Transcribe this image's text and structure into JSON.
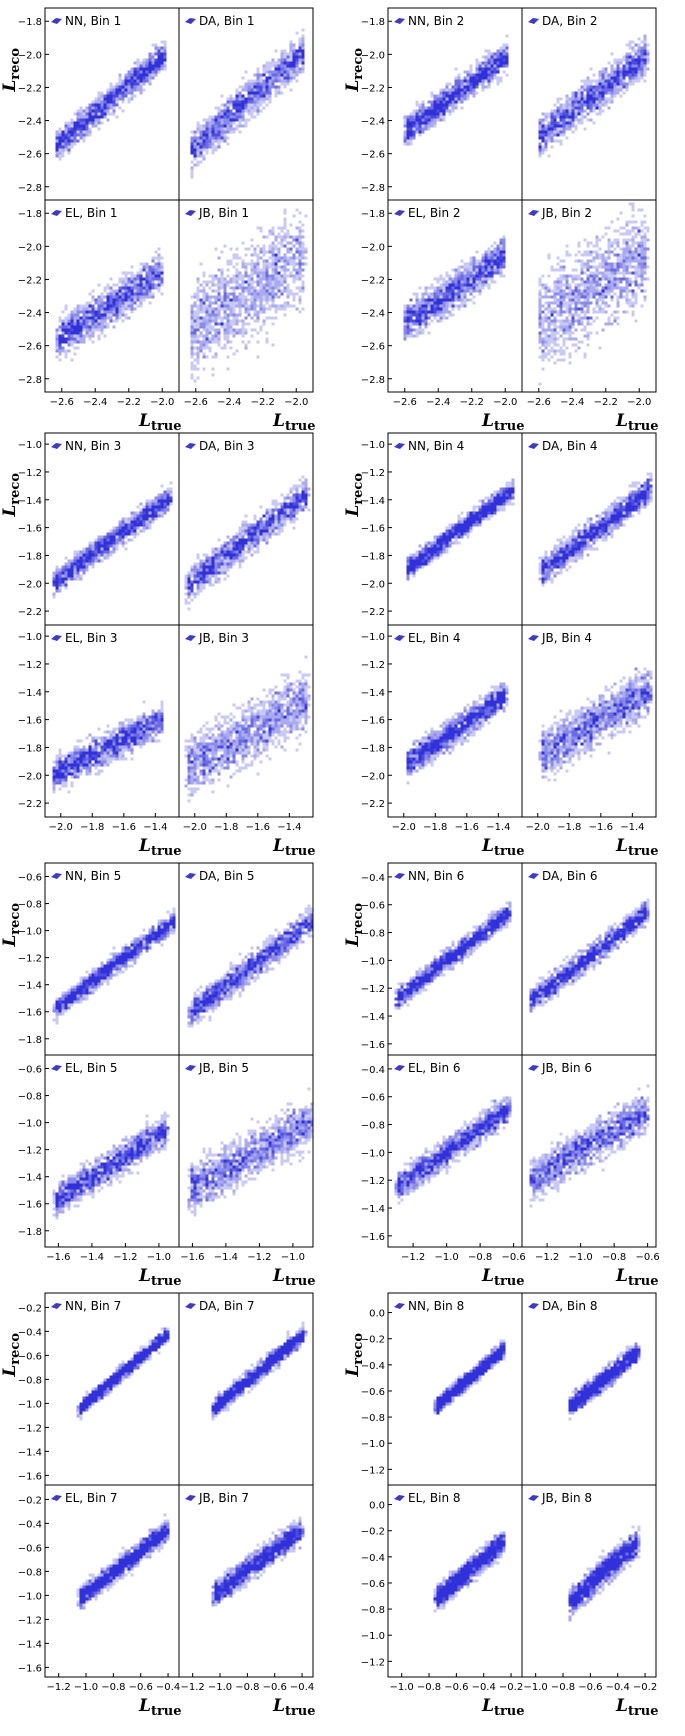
{
  "figure": {
    "ylabel_main": "L",
    "ylabel_sub": "reco",
    "xlabel_main": "L",
    "xlabel_sub": "true"
  },
  "colors": {
    "point": "#1f1fd8",
    "legend_marker": "#3a3ad0",
    "frame": "#000000"
  },
  "chart_data": [
    {
      "type": "heatmap",
      "bin": 1,
      "xticks": [
        "−2.6",
        "−2.4",
        "−2.2",
        "−2.0"
      ],
      "yticks": [
        "−1.8",
        "−2.0",
        "−2.2",
        "−2.4",
        "−2.6",
        "−2.8"
      ],
      "xlim": [
        -2.7,
        -1.9
      ],
      "ylim": [
        -2.88,
        -1.72
      ],
      "xlabel": "L_true",
      "ylabel": "L_reco",
      "panels": [
        {
          "label": "NN, Bin 1",
          "trend": {
            "x": [
              -2.63,
              -1.98
            ],
            "y": [
              -2.55,
              -2.0
            ]
          },
          "x_range": [
            -2.63,
            -1.98
          ],
          "spread": 0.06
        },
        {
          "label": "DA, Bin 1",
          "trend": {
            "x": [
              -2.63,
              -1.95
            ],
            "y": [
              -2.58,
              -1.98
            ]
          },
          "x_range": [
            -2.63,
            -1.95
          ],
          "spread": 0.08
        },
        {
          "label": "EL, Bin 1",
          "trend": {
            "x": [
              -2.63,
              -2.0
            ],
            "y": [
              -2.57,
              -2.15
            ]
          },
          "x_range": [
            -2.63,
            -2.0
          ],
          "spread": 0.08
        },
        {
          "label": "JB, Bin 1",
          "trend": {
            "x": [
              -2.63,
              -1.95
            ],
            "y": [
              -2.5,
              -2.05
            ]
          },
          "x_range": [
            -2.63,
            -1.95
          ],
          "spread": 0.2
        }
      ]
    },
    {
      "type": "heatmap",
      "bin": 2,
      "xticks": [
        "−2.6",
        "−2.4",
        "−2.2",
        "−2.0"
      ],
      "yticks": [
        "−1.8",
        "−2.0",
        "−2.2",
        "−2.4",
        "−2.6",
        "−2.8"
      ],
      "xlim": [
        -2.7,
        -1.9
      ],
      "ylim": [
        -2.88,
        -1.72
      ],
      "xlabel": "L_true",
      "ylabel": "L_reco",
      "panels": [
        {
          "label": "NN, Bin 2",
          "trend": {
            "x": [
              -2.6,
              -1.98
            ],
            "y": [
              -2.47,
              -2.0
            ]
          },
          "x_range": [
            -2.6,
            -1.98
          ],
          "spread": 0.06
        },
        {
          "label": "DA, Bin 2",
          "trend": {
            "x": [
              -2.6,
              -1.95
            ],
            "y": [
              -2.5,
              -2.0
            ]
          },
          "x_range": [
            -2.6,
            -1.95
          ],
          "spread": 0.08
        },
        {
          "label": "EL, Bin 2",
          "trend": {
            "x": [
              -2.6,
              -2.0
            ],
            "y": [
              -2.47,
              -2.05
            ]
          },
          "x_range": [
            -2.6,
            -2.0
          ],
          "spread": 0.08
        },
        {
          "label": "JB, Bin 2",
          "trend": {
            "x": [
              -2.6,
              -1.95
            ],
            "y": [
              -2.45,
              -2.05
            ]
          },
          "x_range": [
            -2.6,
            -1.95
          ],
          "spread": 0.2
        }
      ]
    },
    {
      "type": "heatmap",
      "bin": 3,
      "xticks": [
        "−2.0",
        "−1.8",
        "−1.6",
        "−1.4"
      ],
      "yticks": [
        "−1.0",
        "−1.2",
        "−1.4",
        "−1.6",
        "−1.8",
        "−2.0",
        "−2.2"
      ],
      "xlim": [
        -2.1,
        -1.25
      ],
      "ylim": [
        -2.3,
        -0.92
      ],
      "xlabel": "L_true",
      "ylabel": "L_reco",
      "panels": [
        {
          "label": "NN, Bin 3",
          "trend": {
            "x": [
              -2.05,
              -1.3
            ],
            "y": [
              -2.0,
              -1.38
            ]
          },
          "x_range": [
            -2.05,
            -1.3
          ],
          "spread": 0.06
        },
        {
          "label": "DA, Bin 3",
          "trend": {
            "x": [
              -2.05,
              -1.28
            ],
            "y": [
              -2.02,
              -1.35
            ]
          },
          "x_range": [
            -2.05,
            -1.28
          ],
          "spread": 0.08
        },
        {
          "label": "EL, Bin 3",
          "trend": {
            "x": [
              -2.05,
              -1.35
            ],
            "y": [
              -2.0,
              -1.6
            ]
          },
          "x_range": [
            -2.05,
            -1.35
          ],
          "spread": 0.08
        },
        {
          "label": "JB, Bin 3",
          "trend": {
            "x": [
              -2.05,
              -1.28
            ],
            "y": [
              -1.95,
              -1.45
            ]
          },
          "x_range": [
            -2.05,
            -1.28
          ],
          "spread": 0.15
        }
      ]
    },
    {
      "type": "heatmap",
      "bin": 4,
      "xticks": [
        "−2.0",
        "−1.8",
        "−1.6",
        "−1.4"
      ],
      "yticks": [
        "−1.0",
        "−1.2",
        "−1.4",
        "−1.6",
        "−1.8",
        "−2.0",
        "−2.2"
      ],
      "xlim": [
        -2.1,
        -1.25
      ],
      "ylim": [
        -2.3,
        -0.92
      ],
      "xlabel": "L_true",
      "ylabel": "L_reco",
      "panels": [
        {
          "label": "NN, Bin 4",
          "trend": {
            "x": [
              -1.98,
              -1.3
            ],
            "y": [
              -1.9,
              -1.32
            ]
          },
          "x_range": [
            -1.98,
            -1.3
          ],
          "spread": 0.05
        },
        {
          "label": "DA, Bin 4",
          "trend": {
            "x": [
              -1.98,
              -1.28
            ],
            "y": [
              -1.92,
              -1.32
            ]
          },
          "x_range": [
            -1.98,
            -1.28
          ],
          "spread": 0.07
        },
        {
          "label": "EL, Bin 4",
          "trend": {
            "x": [
              -1.98,
              -1.35
            ],
            "y": [
              -1.92,
              -1.42
            ]
          },
          "x_range": [
            -1.98,
            -1.35
          ],
          "spread": 0.07
        },
        {
          "label": "JB, Bin 4",
          "trend": {
            "x": [
              -1.98,
              -1.28
            ],
            "y": [
              -1.85,
              -1.38
            ]
          },
          "x_range": [
            -1.98,
            -1.28
          ],
          "spread": 0.12
        }
      ]
    },
    {
      "type": "heatmap",
      "bin": 5,
      "xticks": [
        "−1.6",
        "−1.4",
        "−1.2",
        "−1.0"
      ],
      "yticks": [
        "−0.6",
        "−0.8",
        "−1.0",
        "−1.2",
        "−1.4",
        "−1.6",
        "−1.8"
      ],
      "xlim": [
        -1.68,
        -0.88
      ],
      "ylim": [
        -1.92,
        -0.5
      ],
      "xlabel": "L_true",
      "ylabel": "L_reco",
      "panels": [
        {
          "label": "NN, Bin 5",
          "trend": {
            "x": [
              -1.62,
              -0.9
            ],
            "y": [
              -1.58,
              -0.92
            ]
          },
          "x_range": [
            -1.62,
            -0.9
          ],
          "spread": 0.05
        },
        {
          "label": "DA, Bin 5",
          "trend": {
            "x": [
              -1.62,
              -0.88
            ],
            "y": [
              -1.62,
              -0.92
            ]
          },
          "x_range": [
            -1.62,
            -0.88
          ],
          "spread": 0.07
        },
        {
          "label": "EL, Bin 5",
          "trend": {
            "x": [
              -1.62,
              -0.95
            ],
            "y": [
              -1.58,
              -1.05
            ]
          },
          "x_range": [
            -1.62,
            -0.95
          ],
          "spread": 0.08
        },
        {
          "label": "JB, Bin 5",
          "trend": {
            "x": [
              -1.62,
              -0.88
            ],
            "y": [
              -1.5,
              -0.98
            ]
          },
          "x_range": [
            -1.62,
            -0.88
          ],
          "spread": 0.12
        }
      ]
    },
    {
      "type": "heatmap",
      "bin": 6,
      "xticks": [
        "−1.2",
        "−1.0",
        "−0.8",
        "−0.6"
      ],
      "yticks": [
        "−0.4",
        "−0.6",
        "−0.8",
        "−1.0",
        "−1.2",
        "−1.4",
        "−1.6"
      ],
      "xlim": [
        -1.35,
        -0.55
      ],
      "ylim": [
        -1.68,
        -0.3
      ],
      "xlabel": "L_true",
      "ylabel": "L_reco",
      "panels": [
        {
          "label": "NN, Bin 6",
          "trend": {
            "x": [
              -1.3,
              -0.62
            ],
            "y": [
              -1.28,
              -0.65
            ]
          },
          "x_range": [
            -1.3,
            -0.62
          ],
          "spread": 0.05
        },
        {
          "label": "DA, Bin 6",
          "trend": {
            "x": [
              -1.3,
              -0.6
            ],
            "y": [
              -1.3,
              -0.65
            ]
          },
          "x_range": [
            -1.3,
            -0.6
          ],
          "spread": 0.06
        },
        {
          "label": "EL, Bin 6",
          "trend": {
            "x": [
              -1.3,
              -0.62
            ],
            "y": [
              -1.25,
              -0.68
            ]
          },
          "x_range": [
            -1.3,
            -0.62
          ],
          "spread": 0.07
        },
        {
          "label": "JB, Bin 6",
          "trend": {
            "x": [
              -1.3,
              -0.6
            ],
            "y": [
              -1.2,
              -0.7
            ]
          },
          "x_range": [
            -1.3,
            -0.6
          ],
          "spread": 0.1
        }
      ]
    },
    {
      "type": "heatmap",
      "bin": 7,
      "xticks": [
        "−1.2",
        "−1.0",
        "−0.8",
        "−0.6",
        "−0.4"
      ],
      "yticks": [
        "−0.2",
        "−0.4",
        "−0.6",
        "−0.8",
        "−1.0",
        "−1.2",
        "−1.4",
        "−1.6"
      ],
      "xlim": [
        -1.3,
        -0.32
      ],
      "ylim": [
        -1.68,
        -0.08
      ],
      "xlabel": "L_true",
      "ylabel": "L_reco",
      "panels": [
        {
          "label": "NN, Bin 7",
          "trend": {
            "x": [
              -1.05,
              -0.4
            ],
            "y": [
              -1.05,
              -0.42
            ]
          },
          "x_range": [
            -1.05,
            -0.4
          ],
          "spread": 0.04
        },
        {
          "label": "DA, Bin 7",
          "trend": {
            "x": [
              -1.05,
              -0.38
            ],
            "y": [
              -1.05,
              -0.42
            ]
          },
          "x_range": [
            -1.05,
            -0.38
          ],
          "spread": 0.05
        },
        {
          "label": "EL, Bin 7",
          "trend": {
            "x": [
              -1.05,
              -0.4
            ],
            "y": [
              -1.03,
              -0.45
            ]
          },
          "x_range": [
            -1.05,
            -0.4
          ],
          "spread": 0.06
        },
        {
          "label": "JB, Bin 7",
          "trend": {
            "x": [
              -1.05,
              -0.4
            ],
            "y": [
              -1.0,
              -0.45
            ]
          },
          "x_range": [
            -1.05,
            -0.4
          ],
          "spread": 0.07
        }
      ]
    },
    {
      "type": "heatmap",
      "bin": 8,
      "xticks": [
        "−1.0",
        "−0.8",
        "−0.6",
        "−0.4",
        "−0.2"
      ],
      "yticks": [
        "0.0",
        "−0.2",
        "−0.4",
        "−0.6",
        "−0.8",
        "−1.0",
        "−1.2"
      ],
      "xlim": [
        -1.1,
        -0.12
      ],
      "ylim": [
        -1.32,
        0.15
      ],
      "xlabel": "L_true",
      "ylabel": "L_reco",
      "panels": [
        {
          "label": "NN, Bin 8",
          "trend": {
            "x": [
              -0.75,
              -0.25
            ],
            "y": [
              -0.72,
              -0.28
            ]
          },
          "x_range": [
            -0.75,
            -0.25
          ],
          "spread": 0.04
        },
        {
          "label": "DA, Bin 8",
          "trend": {
            "x": [
              -0.75,
              -0.25
            ],
            "y": [
              -0.72,
              -0.3
            ]
          },
          "x_range": [
            -0.75,
            -0.25
          ],
          "spread": 0.05
        },
        {
          "label": "EL, Bin 8",
          "trend": {
            "x": [
              -0.75,
              -0.25
            ],
            "y": [
              -0.72,
              -0.28
            ]
          },
          "x_range": [
            -0.75,
            -0.25
          ],
          "spread": 0.06
        },
        {
          "label": "JB, Bin 8",
          "trend": {
            "x": [
              -0.75,
              -0.25
            ],
            "y": [
              -0.75,
              -0.28
            ]
          },
          "x_range": [
            -0.75,
            -0.25
          ],
          "spread": 0.07
        }
      ]
    }
  ]
}
